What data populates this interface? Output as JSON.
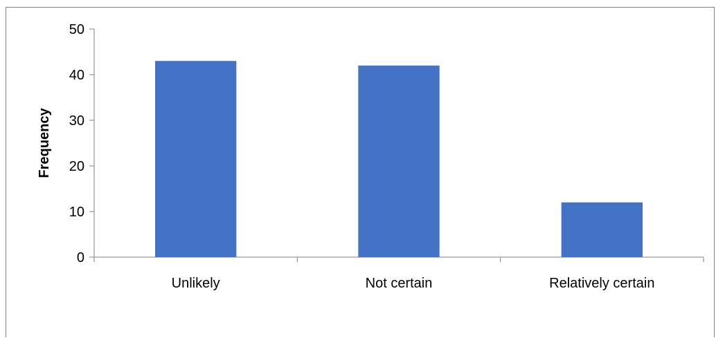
{
  "chart_data": {
    "type": "bar",
    "categories": [
      "Unlikely",
      "Not certain",
      "Relatively certain"
    ],
    "values": [
      43,
      42,
      12
    ],
    "title": "",
    "xlabel": "",
    "ylabel": "Frequency",
    "ylim": [
      0,
      50
    ],
    "yticks": [
      0,
      10,
      20,
      30,
      40,
      50
    ],
    "grid": false,
    "legend": "none",
    "bar_color": "#4472C4"
  }
}
